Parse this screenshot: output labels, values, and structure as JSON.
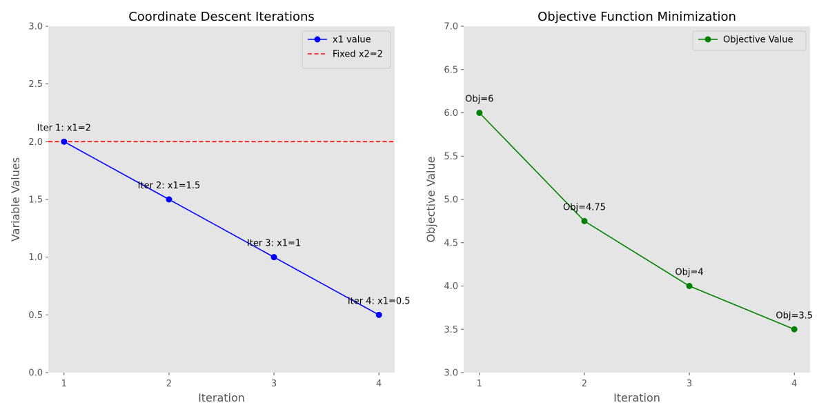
{
  "colors": {
    "plot_bg": "#e5e5e5",
    "left_line": "#0000ff",
    "fixed_line": "#ff0000",
    "right_line": "#008000",
    "tick_text": "#555555"
  },
  "chart_data": [
    {
      "type": "line",
      "title": "Coordinate Descent Iterations",
      "xlabel": "Iteration",
      "ylabel": "Variable Values",
      "x": [
        1,
        2,
        3,
        4
      ],
      "x_ticks": [
        "1",
        "2",
        "3",
        "4"
      ],
      "xlim": [
        0.85,
        4.15
      ],
      "ylim": [
        0,
        3
      ],
      "y_ticks": [
        "0.0",
        "0.5",
        "1.0",
        "1.5",
        "2.0",
        "2.5",
        "3.0"
      ],
      "grid": false,
      "legend_position": "top-right",
      "series": [
        {
          "name": "x1 value",
          "values": [
            2,
            1.5,
            1,
            0.5
          ],
          "color": "#0000ff",
          "style": "solid",
          "marker": "circle"
        }
      ],
      "reference_lines": [
        {
          "name": "Fixed x2=2",
          "y": 2,
          "color": "#ff0000",
          "style": "dashed"
        }
      ],
      "annotations": [
        {
          "text": "Iter 1: x1=2",
          "x": 1,
          "y": 2
        },
        {
          "text": "Iter 2: x1=1.5",
          "x": 2,
          "y": 1.5
        },
        {
          "text": "Iter 3: x1=1",
          "x": 3,
          "y": 1
        },
        {
          "text": "Iter 4: x1=0.5",
          "x": 4,
          "y": 0.5
        }
      ]
    },
    {
      "type": "line",
      "title": "Objective Function Minimization",
      "xlabel": "Iteration",
      "ylabel": "Objective Value",
      "x": [
        1,
        2,
        3,
        4
      ],
      "x_ticks": [
        "1",
        "2",
        "3",
        "4"
      ],
      "xlim": [
        0.85,
        4.15
      ],
      "ylim": [
        3,
        7
      ],
      "y_ticks": [
        "3.0",
        "3.5",
        "4.0",
        "4.5",
        "5.0",
        "5.5",
        "6.0",
        "6.5",
        "7.0"
      ],
      "grid": false,
      "legend_position": "top-right",
      "series": [
        {
          "name": "Objective Value",
          "values": [
            6,
            4.75,
            4,
            3.5
          ],
          "color": "#008000",
          "style": "solid",
          "marker": "circle"
        }
      ],
      "reference_lines": [],
      "annotations": [
        {
          "text": "Obj=6",
          "x": 1,
          "y": 6
        },
        {
          "text": "Obj=4.75",
          "x": 2,
          "y": 4.75
        },
        {
          "text": "Obj=4",
          "x": 3,
          "y": 4
        },
        {
          "text": "Obj=3.5",
          "x": 4,
          "y": 3.5
        }
      ]
    }
  ]
}
